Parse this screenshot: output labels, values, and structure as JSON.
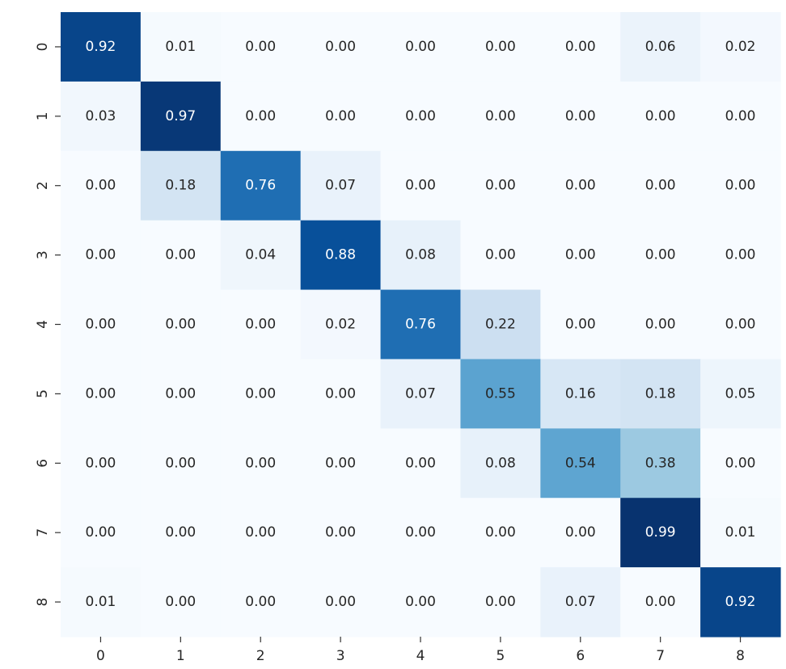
{
  "chart_data": {
    "type": "heatmap",
    "title": "",
    "xlabel": "",
    "ylabel": "",
    "colormap": "Blues",
    "value_range": [
      0,
      1
    ],
    "value_format": "2 decimals",
    "annotated": true,
    "colorbar": false,
    "x_tick_labels": [
      "0",
      "1",
      "2",
      "3",
      "4",
      "5",
      "6",
      "7",
      "8"
    ],
    "y_tick_labels": [
      "0",
      "1",
      "2",
      "3",
      "4",
      "5",
      "6",
      "7",
      "8"
    ],
    "values": [
      [
        0.92,
        0.01,
        0.0,
        0.0,
        0.0,
        0.0,
        0.0,
        0.06,
        0.02
      ],
      [
        0.03,
        0.97,
        0.0,
        0.0,
        0.0,
        0.0,
        0.0,
        0.0,
        0.0
      ],
      [
        0.0,
        0.18,
        0.76,
        0.07,
        0.0,
        0.0,
        0.0,
        0.0,
        0.0
      ],
      [
        0.0,
        0.0,
        0.04,
        0.88,
        0.08,
        0.0,
        0.0,
        0.0,
        0.0
      ],
      [
        0.0,
        0.0,
        0.0,
        0.02,
        0.76,
        0.22,
        0.0,
        0.0,
        0.0
      ],
      [
        0.0,
        0.0,
        0.0,
        0.0,
        0.07,
        0.55,
        0.16,
        0.18,
        0.05
      ],
      [
        0.0,
        0.0,
        0.0,
        0.0,
        0.0,
        0.08,
        0.54,
        0.38,
        0.0
      ],
      [
        0.0,
        0.0,
        0.0,
        0.0,
        0.0,
        0.0,
        0.0,
        0.99,
        0.01
      ],
      [
        0.01,
        0.0,
        0.0,
        0.0,
        0.0,
        0.0,
        0.07,
        0.0,
        0.92
      ]
    ]
  }
}
